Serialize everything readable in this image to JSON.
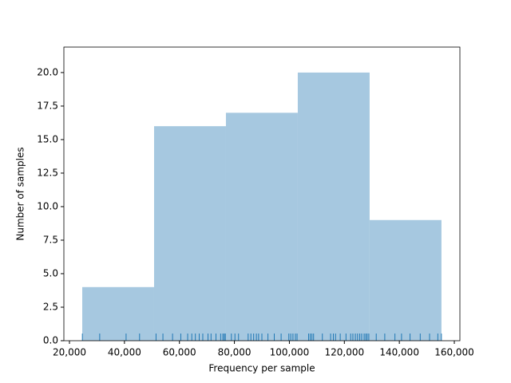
{
  "chart_data": {
    "type": "histogram",
    "xlabel": "Frequency per sample",
    "ylabel": "Number of samples",
    "bins": [
      24647,
      50782,
      76918,
      103054,
      129190,
      155326
    ],
    "values": [
      4,
      16,
      17,
      20,
      9
    ],
    "color": "#a6c8e0",
    "rug": [
      24700,
      31000,
      40600,
      45500,
      51500,
      54000,
      57500,
      60500,
      63000,
      64500,
      65800,
      67200,
      68500,
      70400,
      71500,
      73300,
      75000,
      75800,
      76300,
      76700,
      78900,
      80200,
      81500,
      85000,
      86000,
      87000,
      88000,
      88800,
      90000,
      92200,
      94500,
      97000,
      99800,
      100500,
      101300,
      102200,
      102800,
      107000,
      107600,
      108200,
      108800,
      112000,
      115000,
      116000,
      116800,
      118500,
      120600,
      122300,
      123100,
      124000,
      124800,
      125600,
      126300,
      127200,
      127800,
      128300,
      128900,
      131600,
      134700,
      138400,
      140800,
      143900,
      147600,
      151000,
      154000,
      155300
    ],
    "rug_color": "#1f77b4",
    "xlim": [
      17967,
      162033
    ],
    "ylim": [
      0,
      21.9
    ],
    "xticks": [
      {
        "value": 20000,
        "label": "20,000"
      },
      {
        "value": 40000,
        "label": "40,000"
      },
      {
        "value": 60000,
        "label": "60,000"
      },
      {
        "value": 80000,
        "label": "80,000"
      },
      {
        "value": 100000,
        "label": "100,000"
      },
      {
        "value": 120000,
        "label": "120,000"
      },
      {
        "value": 140000,
        "label": "140,000"
      },
      {
        "value": 160000,
        "label": "160,000"
      }
    ],
    "yticks": [
      {
        "value": 0,
        "label": "0.0"
      },
      {
        "value": 2.5,
        "label": "2.5"
      },
      {
        "value": 5,
        "label": "5.0"
      },
      {
        "value": 7.5,
        "label": "7.5"
      },
      {
        "value": 10,
        "label": "10.0"
      },
      {
        "value": 12.5,
        "label": "12.5"
      },
      {
        "value": 15,
        "label": "15.0"
      },
      {
        "value": 17.5,
        "label": "17.5"
      },
      {
        "value": 20,
        "label": "20.0"
      }
    ]
  }
}
